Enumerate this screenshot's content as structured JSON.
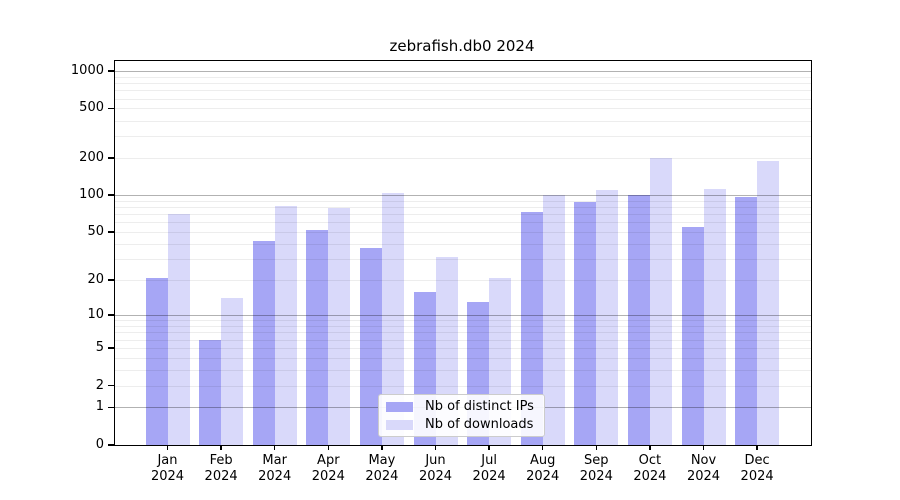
{
  "chart_data": {
    "type": "bar",
    "title": "zebrafish.db0 2024",
    "categories": [
      "Jan",
      "Feb",
      "Mar",
      "Apr",
      "May",
      "Jun",
      "Jul",
      "Aug",
      "Sep",
      "Oct",
      "Nov",
      "Dec"
    ],
    "year": "2024",
    "series": [
      {
        "name": "Nb of distinct IPs",
        "color": "#a6a6f5",
        "values": [
          21,
          6,
          42,
          52,
          37,
          16,
          13,
          73,
          88,
          100,
          55,
          96
        ]
      },
      {
        "name": "Nb of downloads",
        "color": "#d9d9fa",
        "values": [
          70,
          14,
          82,
          79,
          104,
          31,
          21,
          100,
          110,
          200,
          112,
          190
        ]
      }
    ],
    "yscale": "log1p",
    "yticks": [
      0,
      1,
      2,
      5,
      10,
      20,
      50,
      100,
      200,
      500,
      1000
    ],
    "ylim": [
      0,
      1150
    ],
    "grid": true,
    "legend_position": "bottom-center",
    "colors": {
      "major_grid": "rgba(0,0,0,0.30)",
      "minor_grid": "rgba(0,0,0,0.07)",
      "axis": "#000000"
    }
  }
}
